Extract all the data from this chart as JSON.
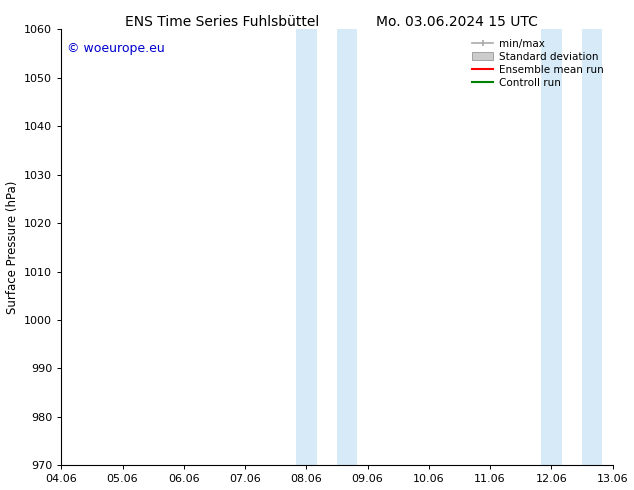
{
  "title_left": "ENS Time Series Fuhlsbüttel",
  "title_right": "Mo. 03.06.2024 15 UTC",
  "ylabel": "Surface Pressure (hPa)",
  "ylim": [
    970,
    1060
  ],
  "yticks": [
    970,
    980,
    990,
    1000,
    1010,
    1020,
    1030,
    1040,
    1050,
    1060
  ],
  "xtick_labels": [
    "04.06",
    "05.06",
    "06.06",
    "07.06",
    "08.06",
    "09.06",
    "10.06",
    "11.06",
    "12.06",
    "13.06"
  ],
  "xlim": [
    0,
    9
  ],
  "shaded_regions": [
    {
      "x_start": 3.83,
      "x_end": 4.17,
      "color": "#d6eaf8"
    },
    {
      "x_start": 4.5,
      "x_end": 4.83,
      "color": "#d6eaf8"
    },
    {
      "x_start": 7.83,
      "x_end": 8.17,
      "color": "#d6eaf8"
    },
    {
      "x_start": 8.5,
      "x_end": 8.83,
      "color": "#d6eaf8"
    }
  ],
  "watermark": "© woeurope.eu",
  "watermark_color": "#0000cc",
  "background_color": "#ffffff",
  "legend_items": [
    {
      "label": "min/max",
      "color": "#aaaaaa",
      "style": "line_with_caps"
    },
    {
      "label": "Standard deviation",
      "color": "#cccccc",
      "style": "filled"
    },
    {
      "label": "Ensemble mean run",
      "color": "#ff0000",
      "style": "line"
    },
    {
      "label": "Controll run",
      "color": "#008000",
      "style": "line"
    }
  ]
}
